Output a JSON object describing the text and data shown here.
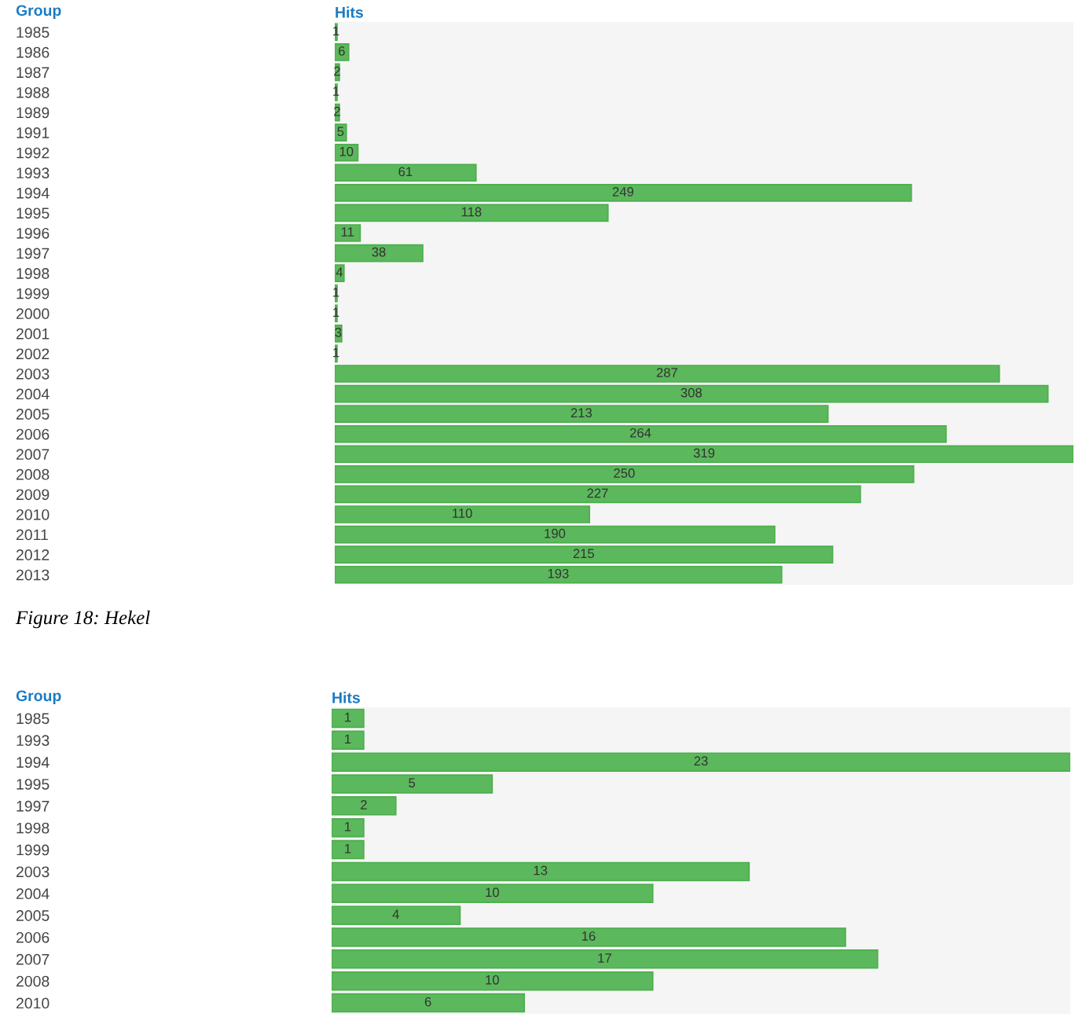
{
  "chart_data": [
    {
      "type": "bar",
      "orientation": "horizontal",
      "ylabel": "Group",
      "xlabel": "Hits",
      "tick_labels": "y",
      "data_labels": true,
      "color": "#5cb85c",
      "categories": [
        "1985",
        "1986",
        "1987",
        "1988",
        "1989",
        "1991",
        "1992",
        "1993",
        "1994",
        "1995",
        "1996",
        "1997",
        "1998",
        "1999",
        "2000",
        "2001",
        "2002",
        "2003",
        "2004",
        "2005",
        "2006",
        "2007",
        "2008",
        "2009",
        "2010",
        "2011",
        "2012",
        "2013"
      ],
      "values": [
        1,
        6,
        2,
        1,
        2,
        5,
        10,
        61,
        249,
        118,
        11,
        38,
        4,
        1,
        1,
        3,
        1,
        287,
        308,
        213,
        264,
        319,
        250,
        227,
        110,
        190,
        215,
        193
      ],
      "annotations": [
        "Figure 18: Hekel"
      ]
    },
    {
      "type": "bar",
      "orientation": "horizontal",
      "ylabel": "Group",
      "xlabel": "Hits",
      "tick_labels": "y",
      "data_labels": true,
      "color": "#5cb85c",
      "categories": [
        "1985",
        "1993",
        "1994",
        "1995",
        "1997",
        "1998",
        "1999",
        "2003",
        "2004",
        "2005",
        "2006",
        "2007",
        "2008",
        "2010"
      ],
      "values": [
        1,
        1,
        23,
        5,
        2,
        1,
        1,
        13,
        10,
        4,
        16,
        17,
        10,
        6
      ]
    }
  ]
}
